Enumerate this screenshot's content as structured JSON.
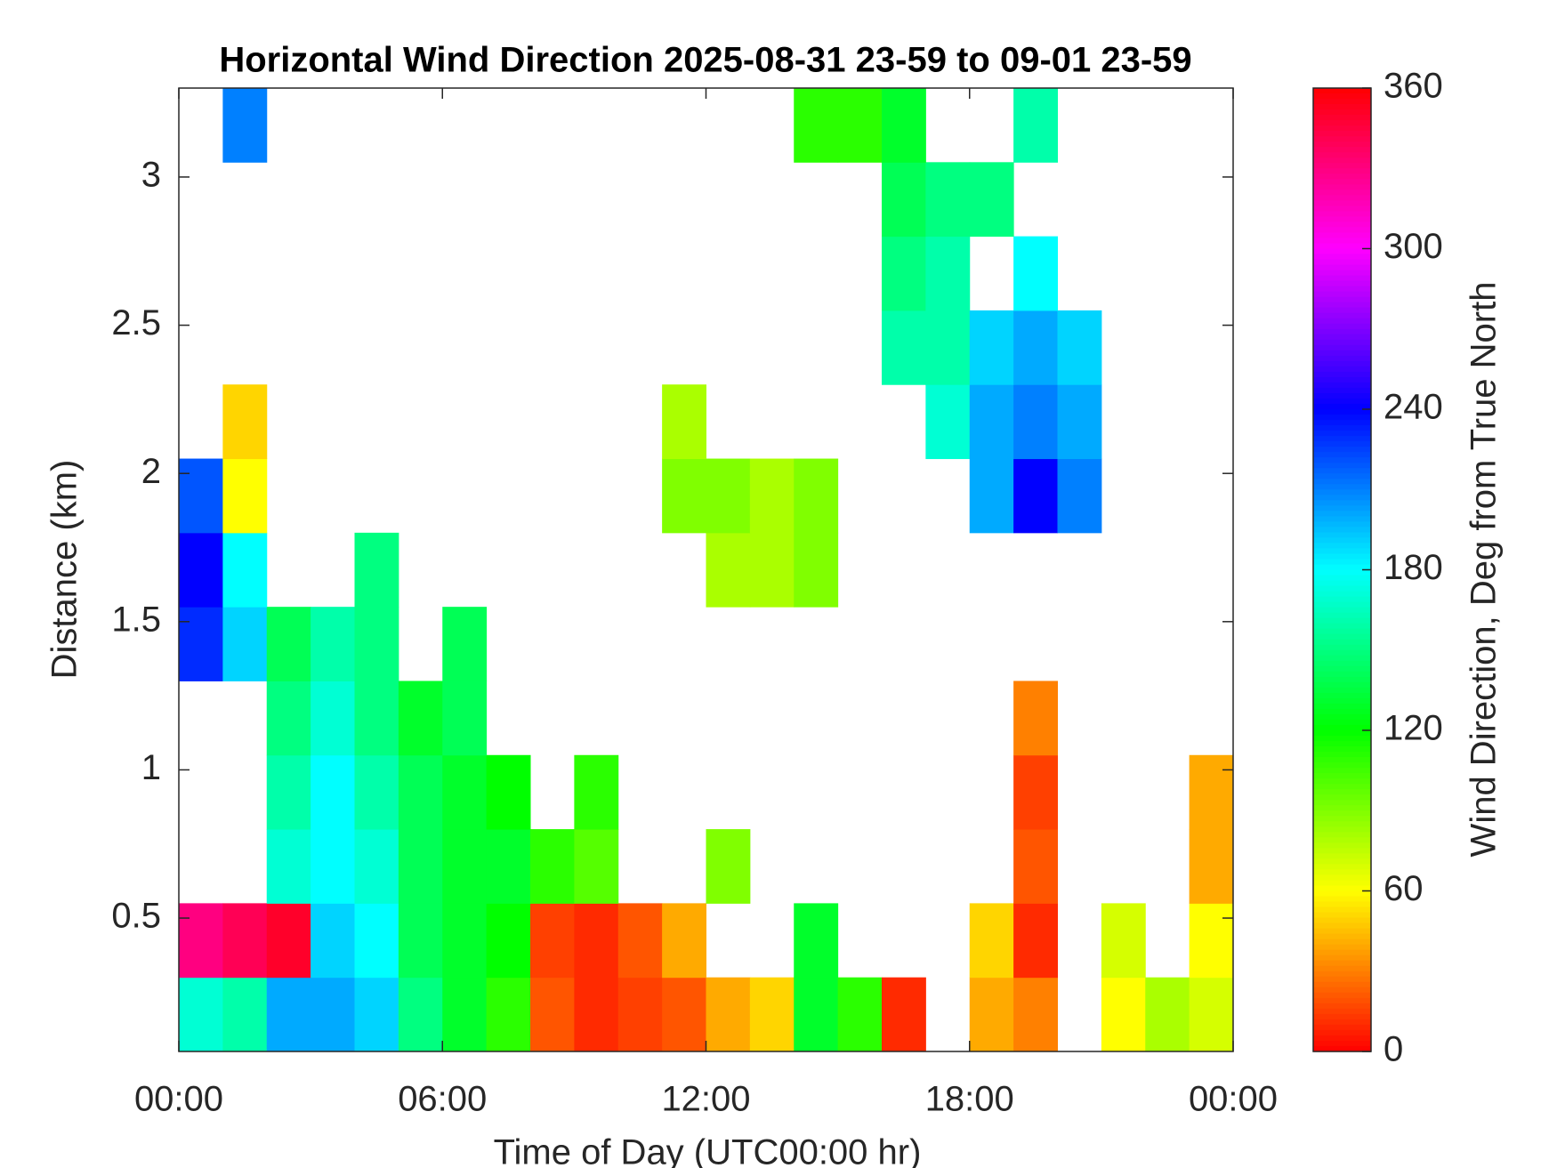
{
  "chart_data": {
    "type": "heatmap",
    "title": "Horizontal Wind Direction 2025-08-31 23-59 to 09-01 23-59",
    "x_label": "Time of Day (UTC00:00 hr)",
    "y_label": "Distance (km)",
    "colorbar_label": "Wind Direction, Deg from True North",
    "x_edges": [
      0,
      1,
      2,
      3,
      4,
      5,
      6,
      7,
      8,
      9,
      10,
      11,
      12,
      13,
      14,
      15,
      16,
      17,
      18,
      19,
      20,
      21,
      22,
      23,
      24
    ],
    "y_edges": [
      0.05,
      0.3,
      0.55,
      0.8,
      1.05,
      1.3,
      1.55,
      1.8,
      2.05,
      2.3,
      2.55,
      2.8,
      3.05,
      3.3
    ],
    "z": [
      [
        170,
        160,
        200,
        200,
        190,
        150,
        130,
        110,
        20,
        10,
        15,
        20,
        40,
        50,
        130,
        110,
        10,
        null,
        40,
        30,
        null,
        60,
        80,
        70
      ],
      [
        330,
        340,
        350,
        190,
        180,
        140,
        130,
        120,
        15,
        10,
        20,
        40,
        null,
        null,
        130,
        null,
        null,
        null,
        50,
        10,
        null,
        70,
        null,
        60
      ],
      [
        null,
        null,
        170,
        180,
        170,
        140,
        130,
        130,
        110,
        100,
        null,
        null,
        90,
        null,
        null,
        null,
        null,
        null,
        null,
        20,
        null,
        null,
        null,
        40
      ],
      [
        null,
        null,
        160,
        180,
        160,
        140,
        130,
        120,
        null,
        110,
        null,
        null,
        null,
        null,
        null,
        null,
        null,
        null,
        null,
        15,
        null,
        null,
        null,
        40
      ],
      [
        null,
        null,
        150,
        170,
        150,
        130,
        140,
        null,
        null,
        null,
        null,
        null,
        null,
        null,
        null,
        null,
        null,
        null,
        null,
        30,
        null,
        null,
        null,
        null
      ],
      [
        230,
        190,
        140,
        160,
        150,
        null,
        140,
        null,
        null,
        null,
        null,
        null,
        null,
        null,
        null,
        null,
        null,
        null,
        null,
        null,
        null,
        null,
        null,
        null
      ],
      [
        240,
        180,
        null,
        null,
        150,
        null,
        null,
        null,
        null,
        null,
        null,
        null,
        80,
        80,
        90,
        null,
        null,
        null,
        null,
        null,
        null,
        null,
        null,
        null
      ],
      [
        220,
        60,
        null,
        null,
        null,
        null,
        null,
        null,
        null,
        null,
        null,
        90,
        90,
        80,
        90,
        null,
        null,
        null,
        200,
        240,
        210,
        null,
        null,
        null
      ],
      [
        null,
        50,
        null,
        null,
        null,
        null,
        null,
        null,
        null,
        null,
        null,
        80,
        null,
        null,
        null,
        null,
        null,
        170,
        200,
        210,
        200,
        null,
        null,
        null
      ],
      [
        null,
        null,
        null,
        null,
        null,
        null,
        null,
        null,
        null,
        null,
        null,
        null,
        null,
        null,
        null,
        null,
        160,
        160,
        190,
        200,
        190,
        null,
        null,
        null
      ],
      [
        null,
        null,
        null,
        null,
        null,
        null,
        null,
        null,
        null,
        null,
        null,
        null,
        null,
        null,
        null,
        null,
        150,
        160,
        null,
        180,
        null,
        null,
        null,
        null
      ],
      [
        null,
        null,
        null,
        null,
        null,
        null,
        null,
        null,
        null,
        null,
        null,
        null,
        null,
        null,
        null,
        null,
        140,
        150,
        150,
        null,
        null,
        null,
        null,
        null
      ],
      [
        null,
        210,
        null,
        null,
        null,
        null,
        null,
        null,
        null,
        null,
        null,
        null,
        null,
        null,
        110,
        110,
        130,
        null,
        null,
        160,
        null,
        null,
        null,
        null
      ]
    ],
    "xlim": [
      0,
      24
    ],
    "xticks": [
      {
        "value": 0,
        "label": "00:00"
      },
      {
        "value": 6,
        "label": "06:00"
      },
      {
        "value": 12,
        "label": "12:00"
      },
      {
        "value": 18,
        "label": "18:00"
      },
      {
        "value": 24,
        "label": "00:00"
      }
    ],
    "ylim": [
      0.05,
      3.3
    ],
    "yticks": [
      0.5,
      1,
      1.5,
      2,
      2.5,
      3
    ],
    "clim": [
      0,
      360
    ],
    "cticks": [
      0,
      60,
      120,
      180,
      240,
      300,
      360
    ],
    "colormap": "hsv"
  }
}
